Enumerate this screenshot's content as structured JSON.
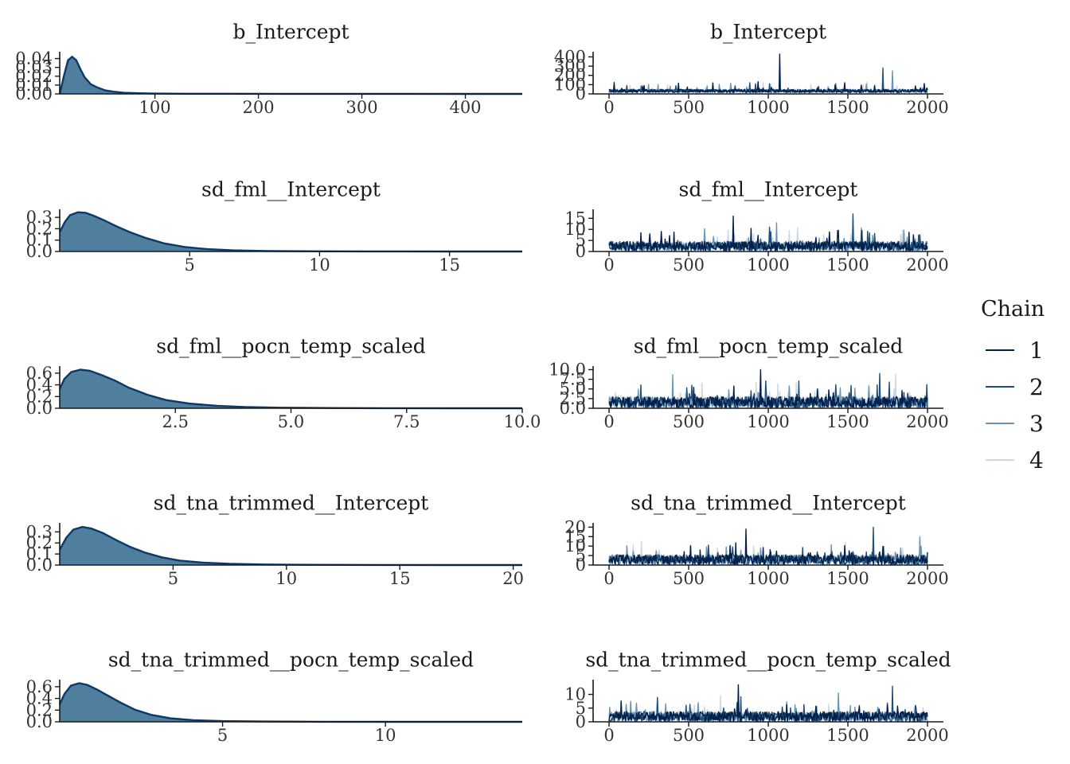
{
  "chart_data": [
    {
      "type": "area",
      "panel": "density",
      "title": "b_Intercept",
      "xlim": [
        8,
        455
      ],
      "ylim": [
        0,
        0.045
      ],
      "xticks": [
        100,
        200,
        300,
        400
      ],
      "yticks": [
        0.0,
        0.01,
        0.02,
        0.03,
        0.04
      ],
      "ytick_labels": [
        "0.00",
        "0.01",
        "0.02",
        "0.03",
        "0.04"
      ],
      "x": [
        8,
        12,
        16,
        20,
        24,
        28,
        32,
        38,
        44,
        52,
        60,
        70,
        85,
        100,
        130,
        170,
        220,
        300,
        400,
        455
      ],
      "y": [
        0.0,
        0.02,
        0.038,
        0.042,
        0.038,
        0.028,
        0.019,
        0.011,
        0.0075,
        0.004,
        0.0025,
        0.0013,
        0.0007,
        0.0004,
        0.0002,
        0.00015,
        0.0001,
        5e-05,
        2e-05,
        0.0
      ]
    },
    {
      "type": "line",
      "panel": "trace",
      "title": "b_Intercept",
      "xlim": [
        -100,
        2100
      ],
      "ylim": [
        0,
        430
      ],
      "xticks": [
        0,
        500,
        1000,
        1500,
        2000
      ],
      "yticks": [
        0,
        100,
        200,
        300,
        400
      ],
      "n_iter": 2000,
      "base": 25,
      "noise": 18,
      "spike_rate": 0.025,
      "spike_max": 90,
      "peaks": [
        [
          1070,
          430
        ],
        [
          1720,
          280
        ],
        [
          1780,
          250
        ]
      ]
    },
    {
      "type": "area",
      "panel": "density",
      "title": "sd_fml__Intercept",
      "xlim": [
        0,
        17.8
      ],
      "ylim": [
        0,
        0.35
      ],
      "xticks": [
        5,
        10,
        15
      ],
      "yticks": [
        0.0,
        0.1,
        0.2,
        0.3
      ],
      "ytick_labels": [
        "0.0",
        "0.1",
        "0.2",
        "0.3"
      ],
      "x": [
        0,
        0.2,
        0.4,
        0.7,
        1.0,
        1.3,
        1.7,
        2.2,
        2.7,
        3.3,
        4.0,
        4.8,
        5.7,
        6.7,
        8.0,
        10.0,
        12.0,
        15.0,
        17.8
      ],
      "y": [
        0.17,
        0.26,
        0.32,
        0.345,
        0.34,
        0.315,
        0.275,
        0.22,
        0.17,
        0.12,
        0.072,
        0.04,
        0.02,
        0.01,
        0.004,
        0.0015,
        0.0006,
        0.0002,
        0.0
      ]
    },
    {
      "type": "line",
      "panel": "trace",
      "title": "sd_fml__Intercept",
      "xlim": [
        -100,
        2100
      ],
      "ylim": [
        0,
        18
      ],
      "xticks": [
        0,
        500,
        1000,
        1500,
        2000
      ],
      "yticks": [
        0,
        5,
        10,
        15
      ],
      "n_iter": 2000,
      "base": 1.5,
      "noise": 2.2,
      "spike_rate": 0.05,
      "spike_max": 7,
      "peaks": [
        [
          780,
          16
        ],
        [
          1530,
          17
        ],
        [
          1050,
          13
        ]
      ]
    },
    {
      "type": "area",
      "panel": "density",
      "title": "sd_fml__pocn_temp_scaled",
      "xlim": [
        0,
        10.0
      ],
      "ylim": [
        0,
        0.68
      ],
      "xticks": [
        2.5,
        5.0,
        7.5,
        10.0
      ],
      "xtick_labels": [
        "2.5",
        "5.0",
        "7.5",
        "10.0"
      ],
      "yticks": [
        0.0,
        0.2,
        0.4,
        0.6
      ],
      "ytick_labels": [
        "0.0",
        "0.2",
        "0.4",
        "0.6"
      ],
      "x": [
        0,
        0.1,
        0.25,
        0.45,
        0.65,
        0.9,
        1.2,
        1.5,
        1.9,
        2.3,
        2.8,
        3.4,
        4.0,
        4.8,
        5.8,
        7.0,
        8.5,
        10.0
      ],
      "y": [
        0.33,
        0.5,
        0.62,
        0.66,
        0.64,
        0.57,
        0.47,
        0.35,
        0.23,
        0.14,
        0.08,
        0.042,
        0.022,
        0.01,
        0.004,
        0.0015,
        0.0005,
        0.0
      ]
    },
    {
      "type": "line",
      "panel": "trace",
      "title": "sd_fml__pocn_temp_scaled",
      "xlim": [
        -100,
        2100
      ],
      "ylim": [
        0,
        10.3
      ],
      "xticks": [
        0,
        500,
        1000,
        1500,
        2000
      ],
      "yticks": [
        0.0,
        2.5,
        5.0,
        7.5,
        10.0
      ],
      "ytick_labels": [
        "0.0",
        "2.5",
        "5.0",
        "7.5",
        "10.0"
      ],
      "n_iter": 2000,
      "base": 0.9,
      "noise": 1.5,
      "spike_rate": 0.05,
      "spike_max": 4.5,
      "peaks": [
        [
          950,
          10.0
        ],
        [
          1700,
          9.0
        ],
        [
          400,
          8.7
        ],
        [
          1800,
          8.8
        ]
      ]
    },
    {
      "type": "area",
      "panel": "density",
      "title": "sd_tna_trimmed__Intercept",
      "xlim": [
        0,
        20.4
      ],
      "ylim": [
        0,
        0.36
      ],
      "xticks": [
        5,
        10,
        15,
        20
      ],
      "yticks": [
        0.0,
        0.1,
        0.2,
        0.3
      ],
      "ytick_labels": [
        "0.0",
        "0.1",
        "0.2",
        "0.3"
      ],
      "x": [
        0,
        0.3,
        0.6,
        1.0,
        1.4,
        1.9,
        2.5,
        3.1,
        3.8,
        4.5,
        5.3,
        6.3,
        7.5,
        9.0,
        11.0,
        14.0,
        17.0,
        20.4
      ],
      "y": [
        0.14,
        0.25,
        0.32,
        0.345,
        0.33,
        0.29,
        0.225,
        0.165,
        0.11,
        0.07,
        0.04,
        0.022,
        0.011,
        0.005,
        0.002,
        0.0007,
        0.0002,
        0.0
      ]
    },
    {
      "type": "line",
      "panel": "trace",
      "title": "sd_tna_trimmed__Intercept",
      "xlim": [
        -100,
        2100
      ],
      "ylim": [
        0,
        21
      ],
      "xticks": [
        0,
        500,
        1000,
        1500,
        2000
      ],
      "yticks": [
        0,
        5,
        10,
        15,
        20
      ],
      "n_iter": 2000,
      "base": 1.8,
      "noise": 2.6,
      "spike_rate": 0.05,
      "spike_max": 8,
      "peaks": [
        [
          860,
          19
        ],
        [
          1660,
          20
        ],
        [
          1950,
          15
        ]
      ]
    },
    {
      "type": "area",
      "panel": "density",
      "title": "sd_tna_trimmed__pocn_temp_scaled",
      "xlim": [
        0,
        14.2
      ],
      "ylim": [
        0,
        0.68
      ],
      "xticks": [
        5,
        10
      ],
      "yticks": [
        0.0,
        0.2,
        0.4,
        0.6
      ],
      "ytick_labels": [
        "0.0",
        "0.2",
        "0.4",
        "0.6"
      ],
      "x": [
        0,
        0.15,
        0.35,
        0.6,
        0.85,
        1.15,
        1.5,
        1.9,
        2.3,
        2.8,
        3.4,
        4.1,
        5.0,
        6.2,
        8.0,
        10.5,
        14.2
      ],
      "y": [
        0.3,
        0.48,
        0.62,
        0.66,
        0.63,
        0.55,
        0.44,
        0.32,
        0.21,
        0.12,
        0.06,
        0.028,
        0.012,
        0.005,
        0.0015,
        0.0004,
        0.0
      ]
    },
    {
      "type": "line",
      "panel": "trace",
      "title": "sd_tna_trimmed__pocn_temp_scaled",
      "xlim": [
        -100,
        2100
      ],
      "ylim": [
        0,
        14.5
      ],
      "xticks": [
        0,
        500,
        1000,
        1500,
        2000
      ],
      "yticks": [
        0,
        5,
        10
      ],
      "n_iter": 2000,
      "base": 1.2,
      "noise": 1.8,
      "spike_rate": 0.05,
      "spike_max": 6,
      "peaks": [
        [
          810,
          13.5
        ],
        [
          1780,
          13.0
        ],
        [
          1440,
          10.5
        ],
        [
          700,
          9.5
        ]
      ]
    }
  ],
  "legend": {
    "title": "Chain",
    "items": [
      {
        "label": "1",
        "color": "#011f4b"
      },
      {
        "label": "2",
        "color": "#1f4e79"
      },
      {
        "label": "3",
        "color": "#6b96b3"
      },
      {
        "label": "4",
        "color": "#cad9e6"
      }
    ]
  },
  "colors": {
    "density_fill": "#4f7f9c",
    "density_line": "#0a3a6b",
    "axis": "#1a1a1a"
  }
}
